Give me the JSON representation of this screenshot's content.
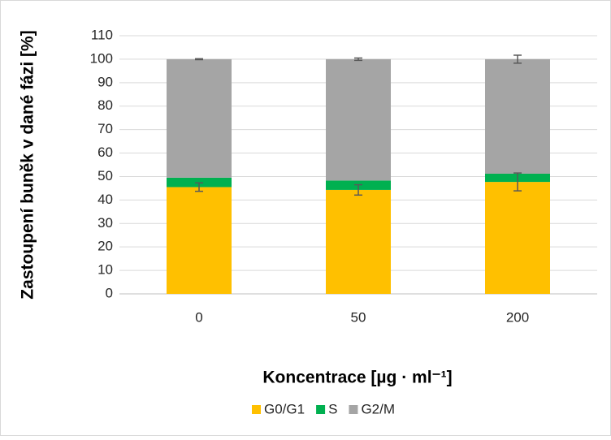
{
  "chart_data": {
    "type": "stacked_bar",
    "ylabel": "Zastoupení buněk v dané fázi [%]",
    "xlabel": "Koncentrace [µg · ml⁻¹]",
    "categories": [
      "0",
      "50",
      "200"
    ],
    "series": [
      {
        "name": "G0/G1",
        "color": "#ffc000",
        "values": [
          45.5,
          44.3,
          47.7
        ],
        "errors": [
          1.8,
          2.2,
          3.8
        ]
      },
      {
        "name": "S",
        "color": "#00b050",
        "values": [
          4.0,
          4.0,
          3.5
        ]
      },
      {
        "name": "G2/M",
        "color": "#a5a5a5",
        "values": [
          50.5,
          51.7,
          48.8
        ],
        "errors": [
          0.2,
          0.5,
          1.7
        ]
      }
    ],
    "ylim": [
      0,
      110
    ],
    "yticks": [
      0,
      10,
      20,
      30,
      40,
      50,
      60,
      70,
      80,
      90,
      100,
      110
    ],
    "grid": true,
    "legend": "bottom"
  }
}
